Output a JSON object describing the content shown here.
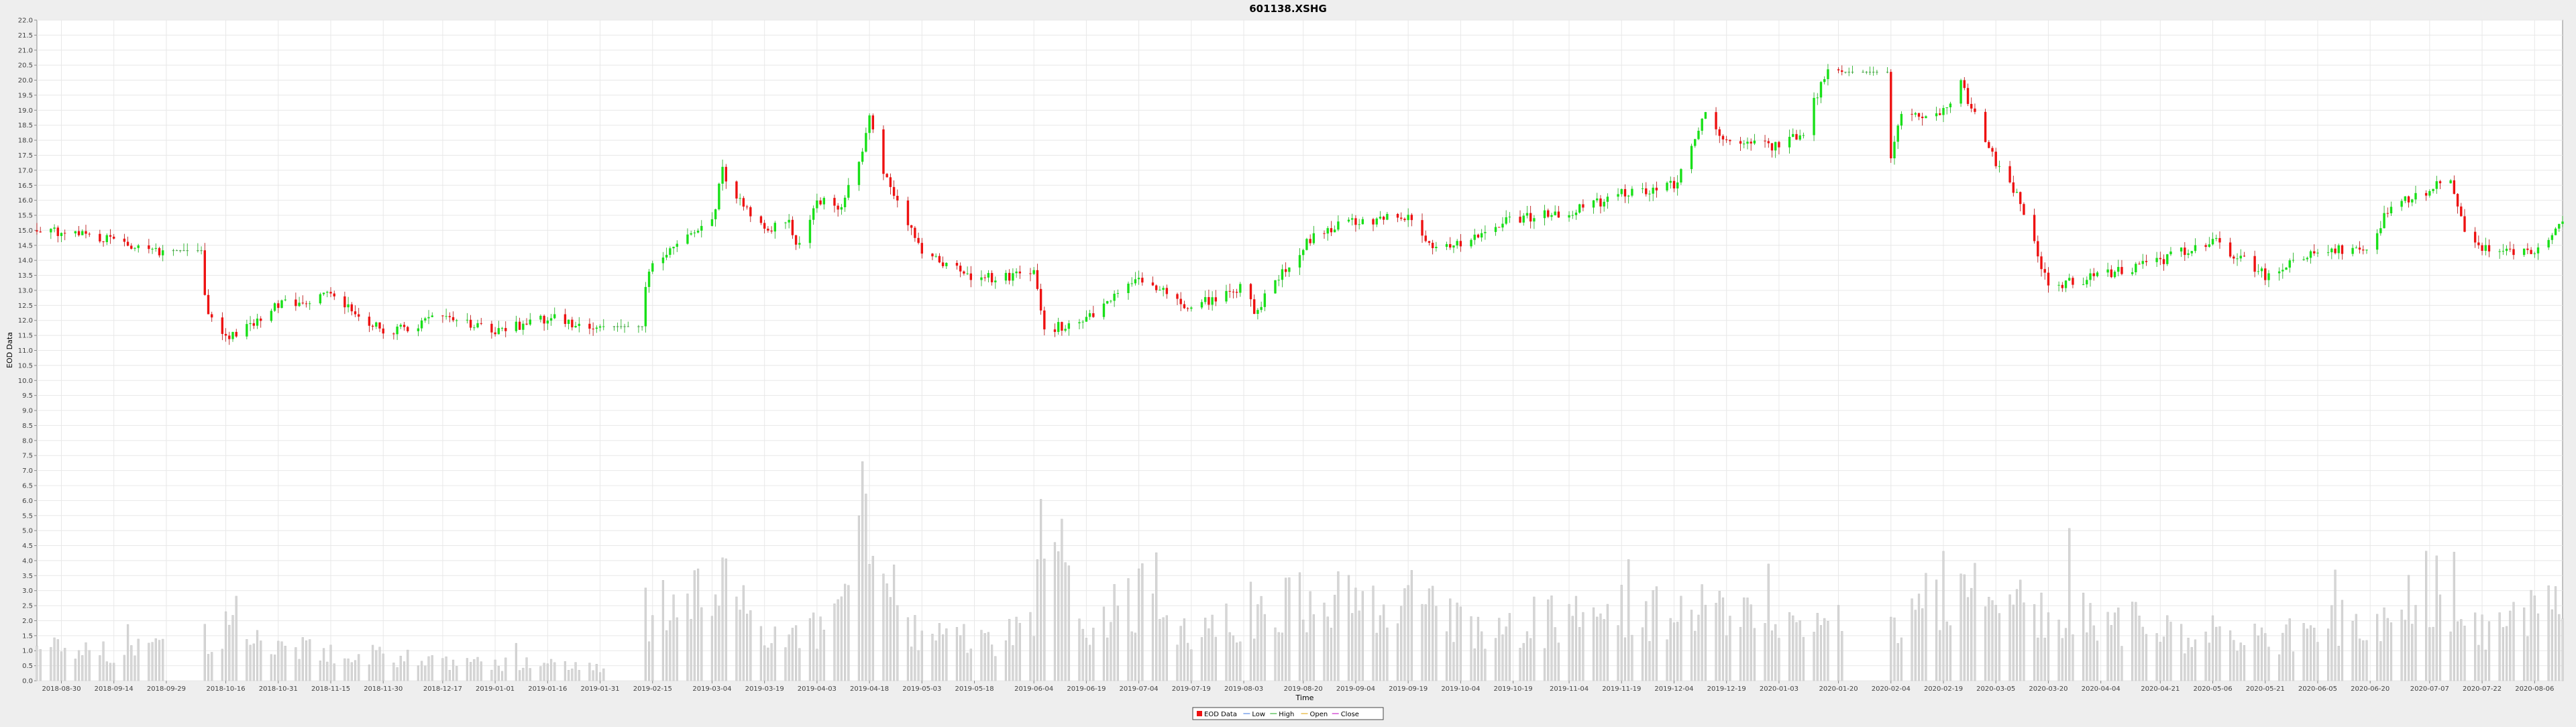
{
  "chart_data": {
    "type": "candlestick",
    "title": "601138.XSHG",
    "xlabel": "Time",
    "ylabel": "EOD Data",
    "ylim": [
      0.0,
      22.0
    ],
    "y_tick_step": 0.5,
    "grid": true,
    "legend_placement": "bottom-center",
    "legend": [
      "EOD Data",
      "Low",
      "High",
      "Open",
      "Close"
    ],
    "x_ticks": [
      "2018-08-30",
      "2018-09-14",
      "2018-09-29",
      "2018-10-16",
      "2018-10-31",
      "2018-11-15",
      "2018-11-30",
      "2018-12-17",
      "2019-01-01",
      "2019-01-16",
      "2019-01-31",
      "2019-02-15",
      "2019-03-04",
      "2019-03-19",
      "2019-04-03",
      "2019-04-18",
      "2019-05-03",
      "2019-05-18",
      "2019-06-04",
      "2019-06-19",
      "2019-07-04",
      "2019-07-19",
      "2019-08-03",
      "2019-08-20",
      "2019-09-04",
      "2019-09-19",
      "2019-10-04",
      "2019-10-19",
      "2019-11-04",
      "2019-11-19",
      "2019-12-04",
      "2019-12-19",
      "2020-01-03",
      "2020-01-20",
      "2020-02-04",
      "2020-02-19",
      "2020-03-05",
      "2020-03-20",
      "2020-04-04",
      "2020-04-21",
      "2020-05-06",
      "2020-05-21",
      "2020-06-05",
      "2020-06-20",
      "2020-07-07",
      "2020-07-22",
      "2020-08-06"
    ],
    "x_range": [
      "2018-08-23",
      "2020-08-14"
    ],
    "price_keypoints": [
      [
        "2018-08-23",
        15.0
      ],
      [
        "2018-09-14",
        14.7
      ],
      [
        "2018-09-29",
        14.2
      ],
      [
        "2018-10-09",
        13.8
      ],
      [
        "2018-10-11",
        12.2
      ],
      [
        "2018-10-16",
        11.4
      ],
      [
        "2018-10-31",
        12.5
      ],
      [
        "2018-11-15",
        12.9
      ],
      [
        "2018-11-30",
        11.6
      ],
      [
        "2018-12-17",
        12.1
      ],
      [
        "2019-01-01",
        11.6
      ],
      [
        "2019-01-16",
        12.1
      ],
      [
        "2019-01-31",
        11.7
      ],
      [
        "2019-02-11",
        12.4
      ],
      [
        "2019-02-15",
        14.0
      ],
      [
        "2019-03-04",
        15.2
      ],
      [
        "2019-03-07",
        17.0
      ],
      [
        "2019-03-10",
        16.2
      ],
      [
        "2019-03-19",
        15.1
      ],
      [
        "2019-03-26",
        15.2
      ],
      [
        "2019-03-28",
        14.4
      ],
      [
        "2019-04-03",
        16.0
      ],
      [
        "2019-04-10",
        15.8
      ],
      [
        "2019-04-15",
        17.3
      ],
      [
        "2019-04-18",
        18.7
      ],
      [
        "2019-04-22",
        17.0
      ],
      [
        "2019-05-03",
        14.2
      ],
      [
        "2019-05-18",
        13.4
      ],
      [
        "2019-06-04",
        13.5
      ],
      [
        "2019-06-07",
        11.7
      ],
      [
        "2019-06-19",
        12.0
      ],
      [
        "2019-07-04",
        13.4
      ],
      [
        "2019-07-19",
        12.4
      ],
      [
        "2019-08-03",
        13.2
      ],
      [
        "2019-08-06",
        12.3
      ],
      [
        "2019-08-20",
        14.5
      ],
      [
        "2019-08-26",
        15.0
      ],
      [
        "2019-09-04",
        15.3
      ],
      [
        "2019-09-19",
        15.5
      ],
      [
        "2019-09-24",
        14.5
      ],
      [
        "2019-10-04",
        14.6
      ],
      [
        "2019-10-19",
        15.4
      ],
      [
        "2019-11-04",
        15.6
      ],
      [
        "2019-11-19",
        16.2
      ],
      [
        "2019-12-04",
        16.5
      ],
      [
        "2019-12-13",
        18.9
      ],
      [
        "2019-12-19",
        17.9
      ],
      [
        "2020-01-03",
        17.8
      ],
      [
        "2020-01-10",
        18.3
      ],
      [
        "2020-01-16",
        20.2
      ],
      [
        "2020-01-20",
        20.5
      ],
      [
        "2020-01-23",
        20.0
      ],
      [
        "2020-02-04",
        17.4
      ],
      [
        "2020-02-07",
        18.8
      ],
      [
        "2020-02-19",
        19.0
      ],
      [
        "2020-02-24",
        19.9
      ],
      [
        "2020-03-05",
        17.3
      ],
      [
        "2020-03-12",
        16.0
      ],
      [
        "2020-03-20",
        13.1
      ],
      [
        "2020-04-04",
        13.5
      ],
      [
        "2020-04-21",
        14.0
      ],
      [
        "2020-05-06",
        14.7
      ],
      [
        "2020-05-21",
        13.5
      ],
      [
        "2020-06-05",
        14.3
      ],
      [
        "2020-06-20",
        14.4
      ],
      [
        "2020-06-26",
        15.9
      ],
      [
        "2020-07-07",
        16.3
      ],
      [
        "2020-07-13",
        16.8
      ],
      [
        "2020-07-17",
        15.0
      ],
      [
        "2020-07-22",
        14.4
      ],
      [
        "2020-08-06",
        14.3
      ],
      [
        "2020-08-14",
        15.4
      ]
    ],
    "volume_keypoints": [
      [
        "2018-08-23",
        1.0
      ],
      [
        "2018-09-29",
        1.0
      ],
      [
        "2018-10-16",
        1.6
      ],
      [
        "2018-10-31",
        1.2
      ],
      [
        "2018-12-17",
        0.6
      ],
      [
        "2019-01-31",
        0.5
      ],
      [
        "2019-02-13",
        2.2
      ],
      [
        "2019-03-04",
        3.3
      ],
      [
        "2019-03-19",
        1.6
      ],
      [
        "2019-04-03",
        1.8
      ],
      [
        "2019-04-12",
        2.8
      ],
      [
        "2019-04-16",
        6.5
      ],
      [
        "2019-04-22",
        4.5
      ],
      [
        "2019-04-27",
        1.7
      ],
      [
        "2019-05-18",
        1.2
      ],
      [
        "2019-06-04",
        1.6
      ],
      [
        "2019-06-07",
        5.5
      ],
      [
        "2019-06-19",
        1.6
      ],
      [
        "2019-07-04",
        2.8
      ],
      [
        "2019-07-19",
        1.3
      ],
      [
        "2019-08-20",
        2.8
      ],
      [
        "2019-09-04",
        2.4
      ],
      [
        "2019-09-19",
        2.6
      ],
      [
        "2019-10-04",
        1.8
      ],
      [
        "2019-11-04",
        2.0
      ],
      [
        "2019-12-04",
        2.4
      ],
      [
        "2020-01-03",
        1.8
      ],
      [
        "2020-01-20",
        2.2
      ],
      [
        "2020-02-04",
        2.0
      ],
      [
        "2020-02-19",
        3.0
      ],
      [
        "2020-03-05",
        2.7
      ],
      [
        "2020-03-20",
        2.5
      ],
      [
        "2020-04-21",
        1.7
      ],
      [
        "2020-05-21",
        1.4
      ],
      [
        "2020-06-05",
        1.6
      ],
      [
        "2020-06-20",
        2.2
      ],
      [
        "2020-07-07",
        3.1
      ],
      [
        "2020-07-22",
        1.6
      ],
      [
        "2020-08-14",
        2.4
      ]
    ],
    "volume_gaps": [
      [
        "2018-10-01",
        "2018-10-09"
      ],
      [
        "2019-02-02",
        "2019-02-12"
      ],
      [
        "2020-01-22",
        "2020-02-03"
      ]
    ]
  }
}
